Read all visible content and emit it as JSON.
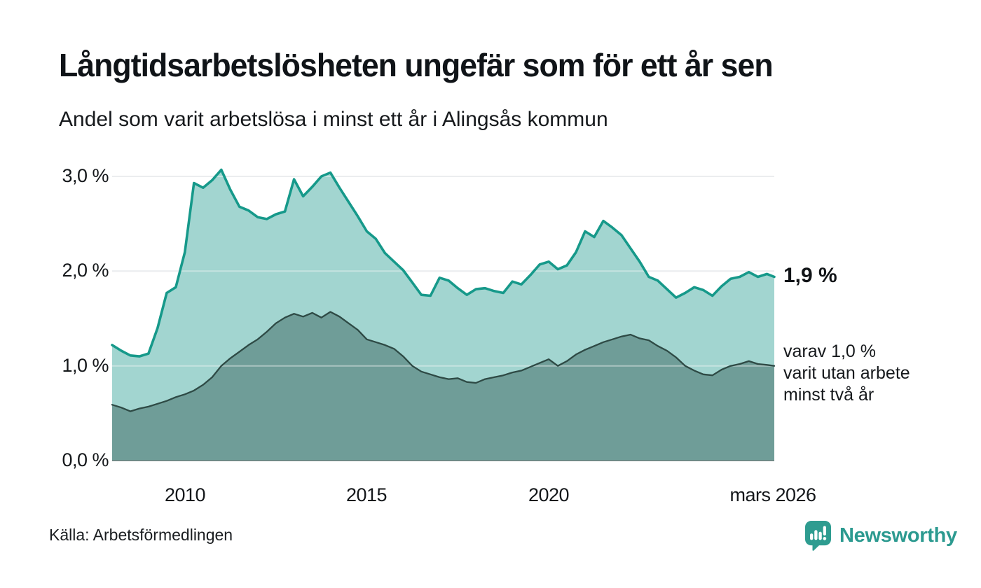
{
  "header": {
    "title": "Långtidsarbetslösheten ungefär som för ett år sen",
    "subtitle": "Andel som varit arbetslösa i minst ett år i Alingsås kommun"
  },
  "footer": {
    "source": "Källa: Arbetsförmedlingen",
    "brand": "Newsworthy"
  },
  "colors": {
    "series_total_line": "#16998a",
    "series_total_fill": "#a2d5d0",
    "series_two_year_line": "#2e4a45",
    "series_two_year_fill": "#6f9d98",
    "gridline": "#e6e8ec",
    "brand_teal": "#2e9c90"
  },
  "chart_data": {
    "type": "area",
    "title": "Långtidsarbetslösheten ungefär som för ett år sen",
    "subtitle": "Andel som varit arbetslösa i minst ett år i Alingsås kommun",
    "x_unit": "decimal_year",
    "ylim": [
      0,
      3.2
    ],
    "grid": true,
    "legend_position": "none",
    "x": [
      2008,
      2008.25,
      2008.5,
      2008.75,
      2009,
      2009.25,
      2009.5,
      2009.75,
      2010,
      2010.25,
      2010.5,
      2010.75,
      2011,
      2011.25,
      2011.5,
      2011.75,
      2012,
      2012.25,
      2012.5,
      2012.75,
      2013,
      2013.25,
      2013.5,
      2013.75,
      2014,
      2014.25,
      2014.5,
      2014.75,
      2015,
      2015.25,
      2015.5,
      2015.75,
      2016,
      2016.25,
      2016.5,
      2016.75,
      2017,
      2017.25,
      2017.5,
      2017.75,
      2018,
      2018.25,
      2018.5,
      2018.75,
      2019,
      2019.25,
      2019.5,
      2019.75,
      2020,
      2020.25,
      2020.5,
      2020.75,
      2021,
      2021.25,
      2021.5,
      2021.75,
      2022,
      2022.25,
      2022.5,
      2022.75,
      2023,
      2023.25,
      2023.5,
      2023.75,
      2024,
      2024.25,
      2024.5,
      2024.75,
      2025,
      2025.25,
      2025.5,
      2025.75,
      2026,
      2026.2
    ],
    "series": [
      {
        "name": "Andel som varit arbetslösa i minst ett år",
        "line_color": "#16998a",
        "fill_color": "#a2d5d0",
        "values": [
          1.22,
          1.16,
          1.11,
          1.1,
          1.13,
          1.4,
          1.77,
          1.83,
          2.2,
          2.93,
          2.88,
          2.96,
          3.07,
          2.86,
          2.68,
          2.64,
          2.57,
          2.55,
          2.6,
          2.63,
          2.97,
          2.79,
          2.89,
          3.0,
          3.04,
          2.88,
          2.73,
          2.58,
          2.42,
          2.34,
          2.19,
          2.1,
          2.01,
          1.88,
          1.75,
          1.74,
          1.93,
          1.9,
          1.82,
          1.75,
          1.81,
          1.82,
          1.79,
          1.77,
          1.89,
          1.86,
          1.96,
          2.07,
          2.1,
          2.02,
          2.06,
          2.2,
          2.42,
          2.36,
          2.53,
          2.46,
          2.38,
          2.24,
          2.1,
          1.94,
          1.9,
          1.81,
          1.72,
          1.77,
          1.83,
          1.8,
          1.74,
          1.84,
          1.92,
          1.94,
          1.99,
          1.94,
          1.97,
          1.94
        ]
      },
      {
        "name": "varav utan arbete minst två år",
        "line_color": "#2e4a45",
        "fill_color": "#6f9d98",
        "values": [
          0.59,
          0.56,
          0.52,
          0.55,
          0.57,
          0.6,
          0.63,
          0.67,
          0.7,
          0.74,
          0.8,
          0.88,
          1.0,
          1.08,
          1.15,
          1.22,
          1.28,
          1.36,
          1.45,
          1.51,
          1.55,
          1.52,
          1.56,
          1.51,
          1.57,
          1.52,
          1.45,
          1.38,
          1.28,
          1.25,
          1.22,
          1.18,
          1.1,
          1.0,
          0.94,
          0.91,
          0.88,
          0.86,
          0.87,
          0.83,
          0.82,
          0.86,
          0.88,
          0.9,
          0.93,
          0.95,
          0.99,
          1.03,
          1.07,
          1.0,
          1.05,
          1.12,
          1.17,
          1.21,
          1.25,
          1.28,
          1.31,
          1.33,
          1.29,
          1.27,
          1.21,
          1.16,
          1.09,
          1.0,
          0.95,
          0.91,
          0.9,
          0.96,
          1.0,
          1.02,
          1.05,
          1.02,
          1.01,
          1.0
        ]
      }
    ],
    "yticks": [
      {
        "v": 0,
        "label": "0,0 %"
      },
      {
        "v": 1,
        "label": "1,0 %"
      },
      {
        "v": 2,
        "label": "2,0 %"
      },
      {
        "v": 3,
        "label": "3,0 %"
      }
    ],
    "xticks": [
      {
        "t": 2010,
        "label": "2010"
      },
      {
        "t": 2015,
        "label": "2015"
      },
      {
        "t": 2020,
        "label": "2020"
      },
      {
        "t": 2026.17,
        "label": "mars 2026"
      }
    ],
    "annotations": {
      "end_label_total": "1,9 %",
      "end_label_two_year_lines": [
        "varav 1,0 %",
        "varit utan arbete",
        "minst två år"
      ]
    }
  }
}
